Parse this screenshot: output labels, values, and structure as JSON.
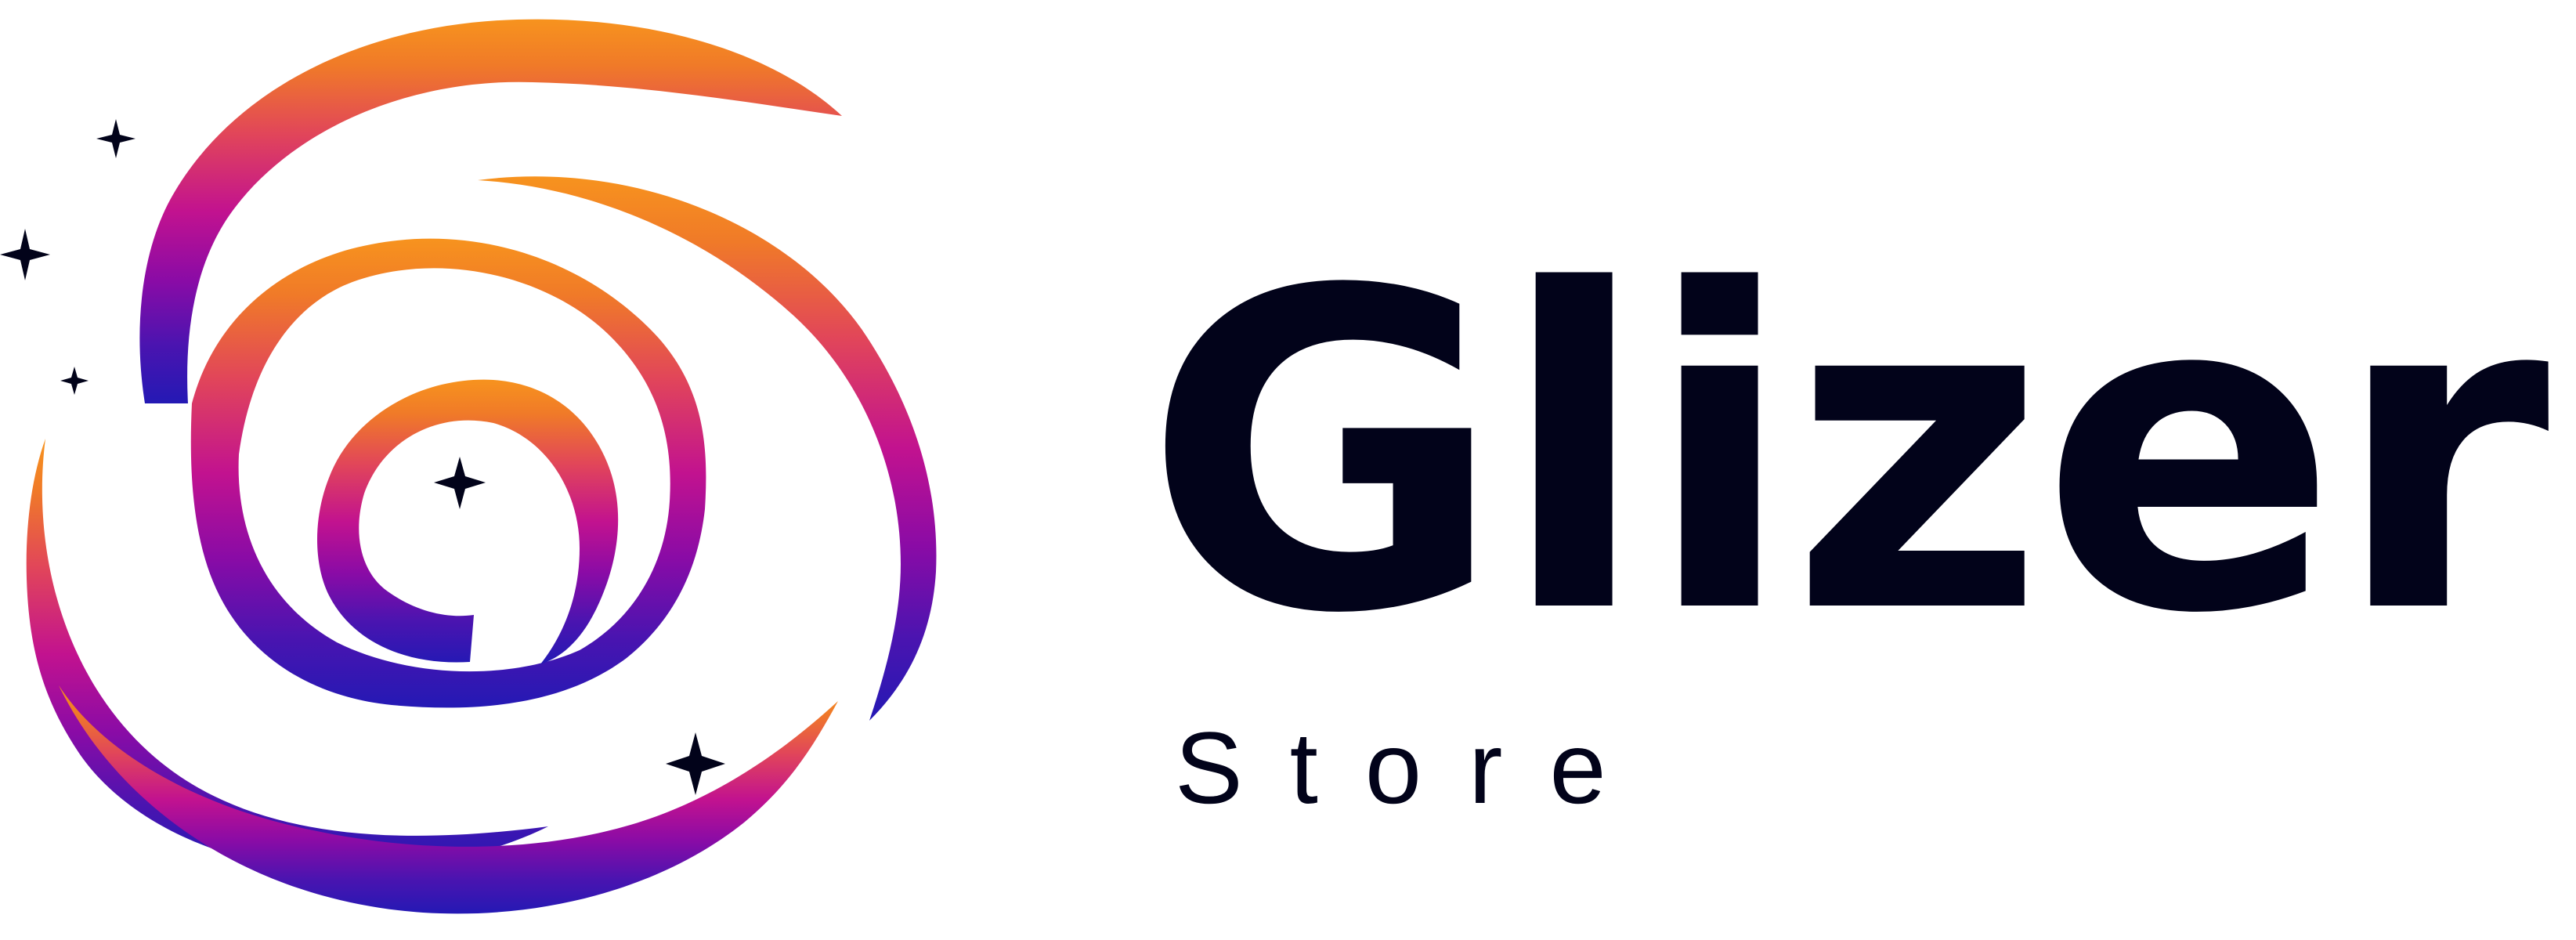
{
  "logo": {
    "brand_name": "Glizer",
    "subtitle": "Store",
    "mark_icon": "spiral-galaxy-with-stars",
    "colors": {
      "text": "#02031a",
      "gradient_top": "#f7931e",
      "gradient_mid": "#c2128f",
      "gradient_bottom": "#2419b4",
      "star": "#02031a"
    }
  }
}
